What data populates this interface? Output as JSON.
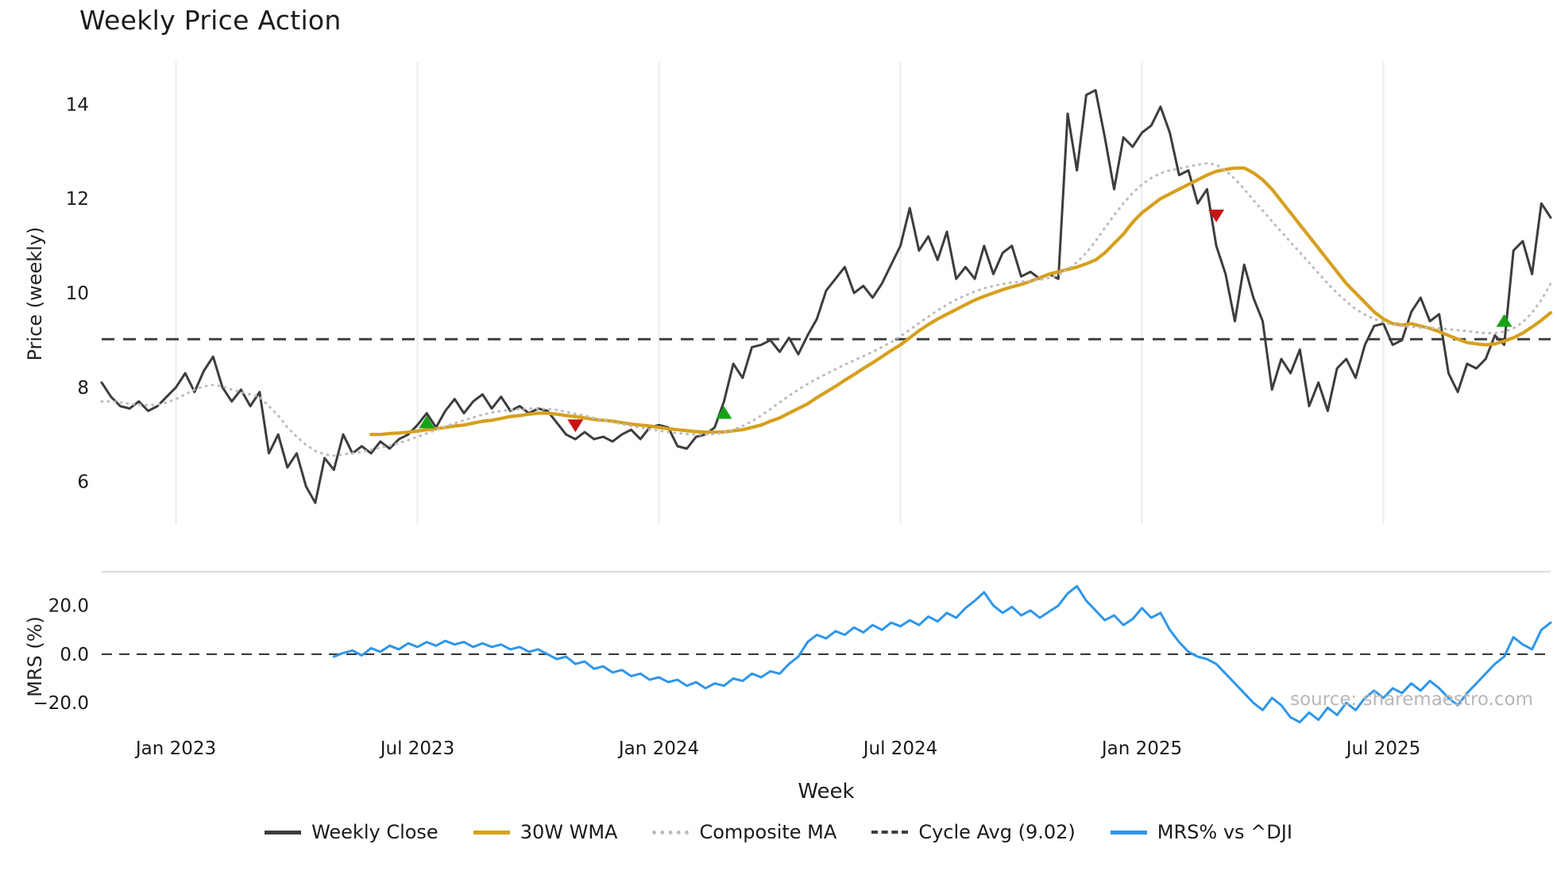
{
  "source_note": "source: sharemaestro.com",
  "chart_data": {
    "type": "line",
    "title": "Weekly Price Action",
    "xlabel": "Week",
    "week_range": [
      -8,
      148
    ],
    "x_ticks": [
      {
        "week": 0,
        "label": "Jan 2023"
      },
      {
        "week": 26,
        "label": "Jul 2023"
      },
      {
        "week": 52,
        "label": "Jan 2024"
      },
      {
        "week": 78,
        "label": "Jul 2024"
      },
      {
        "week": 104,
        "label": "Jan 2025"
      },
      {
        "week": 130,
        "label": "Jul 2025"
      }
    ],
    "panels": {
      "price": {
        "ylabel": "Price (weekly)",
        "ylim": [
          5.1,
          14.9
        ],
        "yticks": [
          6,
          8,
          10,
          12,
          14
        ],
        "grid": "vertical-only",
        "cycle_avg": {
          "label": "Cycle Avg (9.02)",
          "value": 9.02
        }
      },
      "mrs": {
        "ylabel": "MRS (%)",
        "ylim": [
          -34,
          32
        ],
        "yticks": [
          20,
          0,
          -20
        ],
        "zero_line": 0
      }
    },
    "series": [
      {
        "name": "Weekly Close",
        "panel": "price",
        "color": "#3d3d3d",
        "style": "solid",
        "width": 3,
        "start_week": -8,
        "values": [
          8.1,
          7.8,
          7.6,
          7.55,
          7.7,
          7.5,
          7.6,
          7.8,
          8.0,
          8.3,
          7.9,
          8.35,
          8.65,
          8.0,
          7.7,
          7.95,
          7.6,
          7.9,
          6.6,
          7.0,
          6.3,
          6.6,
          5.9,
          5.55,
          6.5,
          6.25,
          7.0,
          6.6,
          6.75,
          6.6,
          6.85,
          6.7,
          6.9,
          7.0,
          7.2,
          7.45,
          7.15,
          7.5,
          7.75,
          7.45,
          7.7,
          7.85,
          7.55,
          7.8,
          7.5,
          7.6,
          7.45,
          7.55,
          7.5,
          7.25,
          7.0,
          6.9,
          7.05,
          6.9,
          6.95,
          6.85,
          7.0,
          7.1,
          6.9,
          7.15,
          7.2,
          7.15,
          6.75,
          6.7,
          6.95,
          7.0,
          7.15,
          7.7,
          8.5,
          8.2,
          8.85,
          8.9,
          9.0,
          8.75,
          9.05,
          8.7,
          9.1,
          9.45,
          10.05,
          10.3,
          10.55,
          10.0,
          10.15,
          9.9,
          10.2,
          10.6,
          11.0,
          11.8,
          10.9,
          11.2,
          10.7,
          11.3,
          10.3,
          10.55,
          10.3,
          11.0,
          10.4,
          10.85,
          11.0,
          10.35,
          10.45,
          10.3,
          10.4,
          10.3,
          13.8,
          12.6,
          14.2,
          14.3,
          13.3,
          12.2,
          13.3,
          13.1,
          13.4,
          13.55,
          13.95,
          13.4,
          12.5,
          12.6,
          11.9,
          12.2,
          11.0,
          10.4,
          9.4,
          10.6,
          9.9,
          9.4,
          7.95,
          8.6,
          8.3,
          8.8,
          7.6,
          8.1,
          7.5,
          8.4,
          8.6,
          8.2,
          8.9,
          9.3,
          9.35,
          8.9,
          9.0,
          9.6,
          9.9,
          9.4,
          9.55,
          8.3,
          7.9,
          8.5,
          8.4,
          8.6,
          9.1,
          8.9,
          10.9,
          11.1,
          10.4,
          11.9,
          11.6
        ]
      },
      {
        "name": "30W WMA",
        "panel": "price",
        "color": "#d6a01d",
        "style": "solid",
        "width": 4.2,
        "start_week": 21,
        "values": [
          7.0,
          7.0,
          7.02,
          7.03,
          7.05,
          7.07,
          7.1,
          7.12,
          7.15,
          7.18,
          7.2,
          7.24,
          7.28,
          7.3,
          7.34,
          7.38,
          7.4,
          7.43,
          7.45,
          7.45,
          7.43,
          7.4,
          7.38,
          7.35,
          7.32,
          7.3,
          7.28,
          7.25,
          7.22,
          7.2,
          7.18,
          7.15,
          7.12,
          7.1,
          7.08,
          7.06,
          7.05,
          7.05,
          7.05,
          7.08,
          7.1,
          7.15,
          7.2,
          7.28,
          7.35,
          7.45,
          7.55,
          7.65,
          7.78,
          7.9,
          8.02,
          8.15,
          8.27,
          8.4,
          8.52,
          8.65,
          8.78,
          8.9,
          9.05,
          9.2,
          9.33,
          9.45,
          9.55,
          9.65,
          9.75,
          9.85,
          9.93,
          10.0,
          10.07,
          10.13,
          10.18,
          10.25,
          10.32,
          10.4,
          10.45,
          10.5,
          10.55,
          10.62,
          10.7,
          10.85,
          11.05,
          11.25,
          11.5,
          11.7,
          11.85,
          12.0,
          12.1,
          12.2,
          12.3,
          12.4,
          12.5,
          12.58,
          12.62,
          12.65,
          12.65,
          12.55,
          12.4,
          12.2,
          11.95,
          11.7,
          11.45,
          11.2,
          10.95,
          10.7,
          10.45,
          10.2,
          10.0,
          9.8,
          9.6,
          9.45,
          9.35,
          9.32,
          9.35,
          9.3,
          9.25,
          9.18,
          9.1,
          9.02,
          8.95,
          8.92,
          8.9,
          8.92,
          8.98,
          9.05,
          9.15,
          9.28,
          9.42,
          9.58
        ]
      },
      {
        "name": "Composite MA",
        "panel": "price",
        "color": "#bcbcbc",
        "style": "dotted",
        "width": 3,
        "start_week": -8,
        "values": [
          7.7,
          7.7,
          7.68,
          7.65,
          7.63,
          7.62,
          7.63,
          7.68,
          7.75,
          7.85,
          7.95,
          8.02,
          8.05,
          8.02,
          7.95,
          7.9,
          7.85,
          7.8,
          7.6,
          7.4,
          7.15,
          6.95,
          6.78,
          6.65,
          6.58,
          6.55,
          6.58,
          6.6,
          6.63,
          6.68,
          6.72,
          6.76,
          6.82,
          6.88,
          6.95,
          7.02,
          7.1,
          7.17,
          7.24,
          7.3,
          7.36,
          7.42,
          7.46,
          7.5,
          7.52,
          7.54,
          7.55,
          7.55,
          7.54,
          7.52,
          7.48,
          7.44,
          7.4,
          7.35,
          7.3,
          7.26,
          7.22,
          7.18,
          7.14,
          7.11,
          7.08,
          7.05,
          7.03,
          7.01,
          7.0,
          7.0,
          7.01,
          7.04,
          7.1,
          7.18,
          7.28,
          7.4,
          7.54,
          7.68,
          7.82,
          7.95,
          8.07,
          8.18,
          8.28,
          8.38,
          8.48,
          8.57,
          8.66,
          8.75,
          8.85,
          8.96,
          9.08,
          9.22,
          9.36,
          9.5,
          9.63,
          9.75,
          9.86,
          9.95,
          10.03,
          10.1,
          10.15,
          10.19,
          10.22,
          10.24,
          10.26,
          10.28,
          10.32,
          10.38,
          10.5,
          10.65,
          10.85,
          11.1,
          11.38,
          11.65,
          11.9,
          12.12,
          12.3,
          12.44,
          12.54,
          12.6,
          12.64,
          12.68,
          12.72,
          12.75,
          12.72,
          12.6,
          12.42,
          12.2,
          11.97,
          11.75,
          11.52,
          11.3,
          11.08,
          10.86,
          10.64,
          10.42,
          10.2,
          10.0,
          9.82,
          9.66,
          9.54,
          9.45,
          9.38,
          9.33,
          9.3,
          9.28,
          9.27,
          9.26,
          9.25,
          9.23,
          9.21,
          9.19,
          9.17,
          9.15,
          9.15,
          9.18,
          9.25,
          9.38,
          9.58,
          9.85,
          10.2
        ]
      },
      {
        "name": "MRS% vs ^DJI",
        "panel": "mrs",
        "color": "#2e96ea",
        "style": "solid",
        "width": 3,
        "start_week": 17,
        "values": [
          -1.0,
          0.5,
          1.5,
          -0.5,
          2.5,
          1.0,
          3.5,
          2.0,
          4.5,
          3.0,
          5.0,
          3.5,
          5.5,
          4.0,
          5.0,
          3.0,
          4.5,
          3.0,
          4.0,
          2.0,
          3.0,
          1.0,
          2.0,
          0.0,
          -2.0,
          -1.0,
          -4.0,
          -3.0,
          -6.0,
          -5.0,
          -7.5,
          -6.5,
          -9.0,
          -8.0,
          -10.5,
          -9.5,
          -11.5,
          -10.5,
          -13.0,
          -11.5,
          -14.0,
          -12.0,
          -13.0,
          -10.0,
          -11.0,
          -8.0,
          -9.5,
          -7.0,
          -8.0,
          -4.0,
          -1.0,
          5.0,
          8.0,
          6.5,
          9.5,
          8.0,
          11.0,
          9.0,
          12.0,
          10.0,
          13.0,
          11.5,
          14.0,
          12.0,
          15.5,
          13.5,
          17.0,
          15.0,
          19.0,
          22.0,
          25.5,
          20.0,
          17.0,
          19.5,
          16.0,
          18.0,
          15.0,
          17.5,
          20.0,
          25.0,
          28.0,
          22.0,
          18.0,
          14.0,
          16.0,
          12.0,
          14.5,
          19.0,
          15.0,
          17.0,
          10.0,
          5.0,
          1.0,
          -1.0,
          -2.0,
          -4.0,
          -8.0,
          -12.0,
          -16.0,
          -20.0,
          -23.0,
          -18.0,
          -21.0,
          -26.0,
          -28.0,
          -24.0,
          -27.0,
          -22.0,
          -25.0,
          -20.0,
          -23.0,
          -18.0,
          -15.0,
          -18.0,
          -14.0,
          -16.0,
          -12.0,
          -15.0,
          -11.0,
          -14.0,
          -18.0,
          -21.0,
          -16.0,
          -12.0,
          -8.0,
          -4.0,
          -1.0,
          7.0,
          4.0,
          2.0,
          10.0,
          13.0
        ]
      }
    ],
    "markers": {
      "buy": {
        "shape": "triangle-up",
        "color": "#17a317",
        "points": [
          {
            "week": 27,
            "price": 7.25
          },
          {
            "week": 59,
            "price": 7.45
          },
          {
            "week": 143,
            "price": 9.4
          }
        ]
      },
      "sell": {
        "shape": "triangle-down",
        "color": "#c81414",
        "points": [
          {
            "week": 43,
            "price": 7.2
          },
          {
            "week": 112,
            "price": 11.65
          }
        ]
      }
    }
  },
  "legend": [
    {
      "label": "Weekly Close",
      "color": "#3d3d3d",
      "style": "solid"
    },
    {
      "label": "30W WMA",
      "color": "#d6a01d",
      "style": "solid"
    },
    {
      "label": "Composite MA",
      "color": "#bcbcbc",
      "style": "dotted"
    },
    {
      "label": "Cycle Avg (9.02)",
      "color": "#3d3d3d",
      "style": "dashed"
    },
    {
      "label": "MRS% vs ^DJI",
      "color": "#2e96ea",
      "style": "solid"
    }
  ]
}
